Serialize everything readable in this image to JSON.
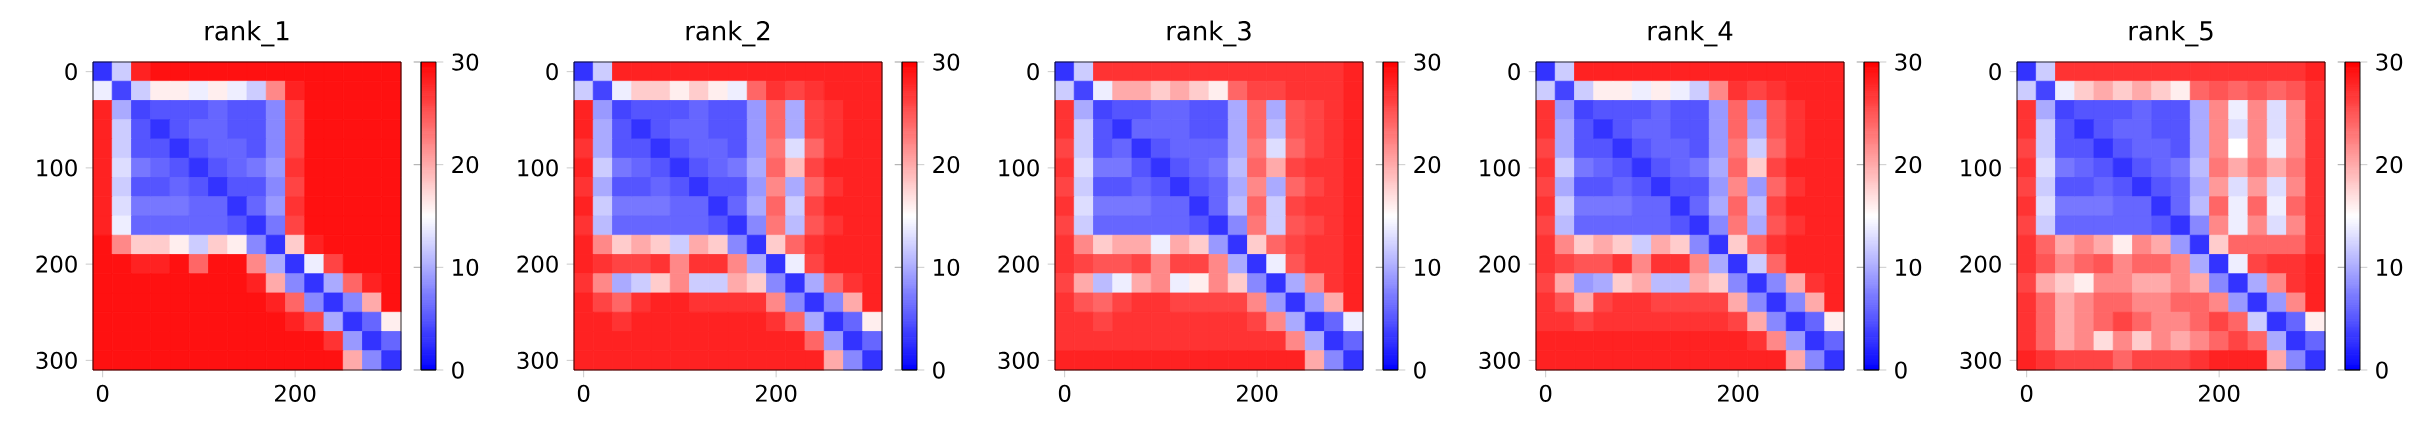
{
  "chart_data": [
    {
      "type": "heatmap",
      "title": "rank_1",
      "categories": [
        "0",
        null,
        null,
        null,
        null,
        null,
        null,
        null,
        null,
        null,
        "200",
        null,
        null,
        null,
        null,
        null
      ],
      "y_categories": [
        "0",
        null,
        null,
        null,
        null,
        "100",
        null,
        null,
        null,
        null,
        "200",
        null,
        null,
        null,
        null,
        "300"
      ],
      "clim": [
        0,
        30
      ],
      "cticks": [
        0,
        10,
        20,
        30
      ],
      "cells": [
        [
          3,
          12,
          28,
          29,
          29,
          29,
          29,
          29,
          29,
          29,
          29,
          29,
          29,
          29,
          29,
          29
        ],
        [
          14,
          4,
          12,
          16,
          16,
          14,
          16,
          14,
          12,
          22,
          28,
          29,
          29,
          29,
          29,
          29
        ],
        [
          28,
          10,
          4,
          5,
          5,
          5,
          6,
          5,
          5,
          8,
          26,
          29,
          29,
          29,
          29,
          29
        ],
        [
          28,
          12,
          5,
          3,
          5,
          6,
          6,
          5,
          5,
          8,
          26,
          29,
          29,
          29,
          29,
          29
        ],
        [
          28,
          12,
          5,
          5,
          3,
          5,
          6,
          6,
          5,
          8,
          26,
          29,
          29,
          29,
          29,
          29
        ],
        [
          28,
          13,
          7,
          6,
          5,
          3,
          5,
          6,
          7,
          9,
          27,
          29,
          29,
          29,
          29,
          29
        ],
        [
          28,
          12,
          5,
          5,
          6,
          5,
          3,
          5,
          5,
          8,
          26,
          29,
          29,
          29,
          29,
          29
        ],
        [
          28,
          13,
          7,
          7,
          7,
          6,
          6,
          3,
          6,
          9,
          27,
          29,
          29,
          29,
          29,
          29
        ],
        [
          28,
          14,
          6,
          6,
          6,
          6,
          6,
          5,
          3,
          7,
          26,
          29,
          29,
          29,
          29,
          29
        ],
        [
          29,
          22,
          18,
          18,
          16,
          12,
          18,
          16,
          8,
          3,
          18,
          28,
          29,
          29,
          29,
          29
        ],
        [
          29,
          29,
          28,
          28,
          29,
          24,
          29,
          29,
          22,
          10,
          3,
          14,
          26,
          29,
          29,
          29
        ],
        [
          29,
          29,
          29,
          29,
          29,
          29,
          29,
          29,
          28,
          20,
          8,
          3,
          10,
          24,
          28,
          29
        ],
        [
          29,
          29,
          29,
          29,
          29,
          29,
          29,
          29,
          29,
          28,
          24,
          8,
          3,
          8,
          20,
          29
        ],
        [
          29,
          29,
          29,
          29,
          29,
          29,
          29,
          29,
          29,
          29,
          28,
          26,
          10,
          3,
          6,
          16
        ],
        [
          29,
          29,
          29,
          29,
          29,
          29,
          29,
          29,
          29,
          29,
          29,
          29,
          27,
          9,
          3,
          6
        ],
        [
          29,
          29,
          29,
          29,
          29,
          29,
          29,
          29,
          29,
          29,
          29,
          29,
          29,
          20,
          8,
          3
        ]
      ]
    },
    {
      "type": "heatmap",
      "title": "rank_2",
      "categories": [
        "0",
        null,
        null,
        null,
        null,
        null,
        null,
        null,
        null,
        null,
        "200",
        null,
        null,
        null,
        null,
        null
      ],
      "y_categories": [
        "0",
        null,
        null,
        null,
        null,
        "100",
        null,
        null,
        null,
        null,
        "200",
        null,
        null,
        null,
        null,
        "300"
      ],
      "clim": [
        0,
        30
      ],
      "cticks": [
        0,
        10,
        20,
        30
      ],
      "cells": [
        [
          3,
          12,
          28,
          28,
          28,
          28,
          28,
          28,
          28,
          28,
          28,
          28,
          28,
          28,
          28,
          28
        ],
        [
          12,
          4,
          14,
          18,
          18,
          16,
          18,
          16,
          14,
          24,
          27,
          26,
          27,
          28,
          28,
          28
        ],
        [
          28,
          9,
          4,
          5,
          5,
          5,
          6,
          5,
          5,
          9,
          24,
          10,
          26,
          27,
          28,
          28
        ],
        [
          28,
          10,
          5,
          3,
          5,
          6,
          6,
          5,
          5,
          9,
          24,
          10,
          26,
          27,
          28,
          28
        ],
        [
          27,
          10,
          5,
          5,
          3,
          5,
          6,
          6,
          5,
          9,
          23,
          13,
          24,
          27,
          28,
          28
        ],
        [
          28,
          12,
          7,
          6,
          5,
          3,
          5,
          6,
          7,
          10,
          24,
          19,
          26,
          28,
          28,
          28
        ],
        [
          27,
          10,
          5,
          5,
          6,
          5,
          3,
          5,
          5,
          9,
          22,
          10,
          24,
          27,
          28,
          28
        ],
        [
          28,
          12,
          7,
          7,
          7,
          6,
          6,
          3,
          6,
          10,
          24,
          12,
          26,
          28,
          28,
          28
        ],
        [
          27,
          11,
          6,
          6,
          6,
          6,
          6,
          5,
          3,
          8,
          23,
          11,
          25,
          27,
          28,
          28
        ],
        [
          28,
          22,
          18,
          20,
          18,
          12,
          20,
          18,
          8,
          3,
          18,
          24,
          27,
          28,
          28,
          28
        ],
        [
          28,
          27,
          26,
          26,
          27,
          22,
          27,
          27,
          22,
          10,
          3,
          14,
          26,
          28,
          28,
          28
        ],
        [
          27,
          22,
          10,
          12,
          18,
          22,
          12,
          12,
          20,
          18,
          8,
          3,
          10,
          24,
          27,
          28
        ],
        [
          28,
          26,
          24,
          27,
          28,
          28,
          27,
          27,
          27,
          27,
          22,
          8,
          3,
          8,
          20,
          28
        ],
        [
          28,
          28,
          27,
          28,
          28,
          28,
          28,
          28,
          28,
          28,
          27,
          24,
          10,
          3,
          6,
          16
        ],
        [
          28,
          28,
          28,
          28,
          28,
          28,
          28,
          28,
          28,
          28,
          28,
          28,
          24,
          9,
          3,
          6
        ],
        [
          28,
          28,
          28,
          28,
          28,
          28,
          28,
          28,
          28,
          28,
          28,
          28,
          28,
          20,
          8,
          3
        ]
      ]
    },
    {
      "type": "heatmap",
      "title": "rank_3",
      "categories": [
        "0",
        null,
        null,
        null,
        null,
        null,
        null,
        null,
        null,
        null,
        "200",
        null,
        null,
        null,
        null,
        null
      ],
      "y_categories": [
        "0",
        null,
        null,
        null,
        null,
        "100",
        null,
        null,
        null,
        null,
        "200",
        null,
        null,
        null,
        null,
        "300"
      ],
      "clim": [
        0,
        30
      ],
      "cticks": [
        0,
        10,
        20,
        30
      ],
      "cells": [
        [
          3,
          12,
          27,
          27,
          27,
          27,
          27,
          27,
          27,
          27,
          27,
          27,
          27,
          27,
          27,
          28
        ],
        [
          12,
          4,
          14,
          20,
          20,
          18,
          20,
          18,
          16,
          24,
          26,
          26,
          27,
          27,
          27,
          28
        ],
        [
          27,
          10,
          4,
          5,
          5,
          6,
          6,
          5,
          5,
          10,
          24,
          10,
          25,
          26,
          27,
          28
        ],
        [
          27,
          12,
          5,
          3,
          6,
          6,
          6,
          5,
          5,
          10,
          24,
          11,
          25,
          26,
          27,
          28
        ],
        [
          26,
          12,
          5,
          6,
          3,
          5,
          6,
          6,
          6,
          10,
          23,
          13,
          24,
          26,
          27,
          28
        ],
        [
          27,
          13,
          7,
          7,
          5,
          3,
          5,
          6,
          7,
          11,
          24,
          20,
          26,
          27,
          27,
          28
        ],
        [
          26,
          12,
          5,
          5,
          6,
          5,
          3,
          5,
          6,
          10,
          22,
          10,
          24,
          26,
          27,
          28
        ],
        [
          27,
          13,
          7,
          7,
          7,
          6,
          6,
          3,
          6,
          11,
          24,
          12,
          26,
          27,
          27,
          28
        ],
        [
          26,
          12,
          6,
          6,
          6,
          6,
          6,
          5,
          3,
          8,
          23,
          12,
          25,
          26,
          27,
          28
        ],
        [
          27,
          22,
          18,
          20,
          20,
          14,
          20,
          18,
          9,
          3,
          18,
          24,
          26,
          27,
          27,
          28
        ],
        [
          27,
          26,
          25,
          25,
          26,
          22,
          26,
          26,
          22,
          10,
          3,
          14,
          25,
          27,
          27,
          28
        ],
        [
          26,
          20,
          11,
          14,
          20,
          22,
          14,
          16,
          22,
          18,
          8,
          3,
          10,
          22,
          27,
          28
        ],
        [
          27,
          25,
          24,
          26,
          27,
          27,
          26,
          26,
          26,
          26,
          22,
          9,
          3,
          9,
          20,
          28
        ],
        [
          27,
          27,
          26,
          27,
          27,
          27,
          27,
          27,
          27,
          27,
          26,
          22,
          10,
          3,
          6,
          14
        ],
        [
          27,
          27,
          27,
          27,
          27,
          27,
          27,
          27,
          27,
          27,
          27,
          27,
          22,
          10,
          3,
          6
        ],
        [
          28,
          28,
          28,
          28,
          28,
          28,
          28,
          28,
          28,
          28,
          28,
          28,
          28,
          20,
          8,
          3
        ]
      ]
    },
    {
      "type": "heatmap",
      "title": "rank_4",
      "categories": [
        "0",
        null,
        null,
        null,
        null,
        null,
        null,
        null,
        null,
        null,
        "200",
        null,
        null,
        null,
        null,
        null
      ],
      "y_categories": [
        "0",
        null,
        null,
        null,
        null,
        "100",
        null,
        null,
        null,
        null,
        "200",
        null,
        null,
        null,
        null,
        "300"
      ],
      "clim": [
        0,
        30
      ],
      "cticks": [
        0,
        10,
        20,
        30
      ],
      "cells": [
        [
          3,
          12,
          28,
          28,
          28,
          28,
          28,
          28,
          28,
          28,
          28,
          28,
          28,
          28,
          28,
          28
        ],
        [
          12,
          4,
          12,
          16,
          16,
          14,
          16,
          14,
          12,
          22,
          27,
          26,
          27,
          28,
          28,
          28
        ],
        [
          27,
          9,
          4,
          5,
          5,
          5,
          6,
          5,
          5,
          9,
          24,
          9,
          25,
          27,
          28,
          28
        ],
        [
          27,
          10,
          5,
          3,
          5,
          6,
          6,
          5,
          5,
          9,
          24,
          10,
          25,
          27,
          28,
          28
        ],
        [
          26,
          10,
          5,
          5,
          3,
          5,
          6,
          6,
          5,
          9,
          23,
          12,
          24,
          27,
          28,
          28
        ],
        [
          27,
          12,
          7,
          6,
          5,
          3,
          5,
          6,
          7,
          10,
          24,
          18,
          26,
          28,
          28,
          28
        ],
        [
          26,
          10,
          5,
          5,
          6,
          5,
          3,
          5,
          5,
          9,
          22,
          9,
          24,
          27,
          28,
          28
        ],
        [
          27,
          12,
          7,
          7,
          7,
          6,
          6,
          3,
          6,
          10,
          24,
          11,
          26,
          28,
          28,
          28
        ],
        [
          26,
          11,
          6,
          6,
          6,
          6,
          6,
          5,
          3,
          8,
          23,
          10,
          25,
          27,
          28,
          28
        ],
        [
          27,
          22,
          18,
          20,
          18,
          12,
          20,
          18,
          8,
          3,
          18,
          24,
          27,
          28,
          28,
          28
        ],
        [
          27,
          26,
          25,
          25,
          27,
          22,
          27,
          27,
          22,
          10,
          3,
          12,
          24,
          28,
          28,
          28
        ],
        [
          26,
          20,
          9,
          10,
          18,
          20,
          11,
          11,
          20,
          18,
          8,
          3,
          8,
          20,
          27,
          28
        ],
        [
          27,
          25,
          20,
          26,
          27,
          27,
          26,
          26,
          26,
          26,
          20,
          8,
          3,
          8,
          20,
          28
        ],
        [
          27,
          27,
          26,
          27,
          27,
          27,
          27,
          27,
          27,
          27,
          26,
          20,
          8,
          3,
          6,
          16
        ],
        [
          28,
          28,
          28,
          28,
          28,
          28,
          28,
          28,
          28,
          28,
          28,
          27,
          22,
          9,
          3,
          6
        ],
        [
          28,
          28,
          28,
          28,
          28,
          28,
          28,
          28,
          28,
          28,
          28,
          28,
          28,
          20,
          8,
          3
        ]
      ]
    },
    {
      "type": "heatmap",
      "title": "rank_5",
      "categories": [
        "0",
        null,
        null,
        null,
        null,
        null,
        null,
        null,
        null,
        null,
        "200",
        null,
        null,
        null,
        null,
        null
      ],
      "y_categories": [
        "0",
        null,
        null,
        null,
        null,
        "100",
        null,
        null,
        null,
        null,
        "200",
        null,
        null,
        null,
        null,
        "300"
      ],
      "clim": [
        0,
        30
      ],
      "cticks": [
        0,
        10,
        20,
        30
      ],
      "cells": [
        [
          3,
          12,
          27,
          27,
          27,
          27,
          27,
          27,
          27,
          27,
          27,
          27,
          27,
          27,
          27,
          28
        ],
        [
          12,
          4,
          14,
          18,
          20,
          18,
          20,
          18,
          16,
          24,
          25,
          24,
          25,
          24,
          25,
          27
        ],
        [
          27,
          10,
          4,
          5,
          5,
          5,
          6,
          5,
          5,
          10,
          22,
          14,
          22,
          13,
          22,
          27
        ],
        [
          27,
          12,
          5,
          3,
          5,
          6,
          6,
          5,
          5,
          10,
          22,
          13,
          22,
          13,
          22,
          27
        ],
        [
          26,
          12,
          5,
          5,
          3,
          5,
          6,
          6,
          5,
          10,
          22,
          15,
          22,
          14,
          22,
          27
        ],
        [
          27,
          13,
          7,
          6,
          5,
          3,
          5,
          6,
          7,
          11,
          23,
          20,
          23,
          20,
          23,
          27
        ],
        [
          26,
          12,
          5,
          5,
          6,
          5,
          3,
          5,
          6,
          10,
          21,
          13,
          21,
          13,
          22,
          27
        ],
        [
          27,
          13,
          7,
          7,
          7,
          6,
          6,
          3,
          6,
          11,
          24,
          14,
          24,
          14,
          24,
          27
        ],
        [
          26,
          12,
          6,
          6,
          6,
          6,
          6,
          5,
          3,
          8,
          22,
          14,
          22,
          13,
          22,
          27
        ],
        [
          27,
          24,
          20,
          22,
          20,
          16,
          22,
          20,
          9,
          3,
          18,
          24,
          24,
          24,
          24,
          27
        ],
        [
          27,
          25,
          22,
          24,
          25,
          22,
          24,
          24,
          22,
          10,
          3,
          14,
          26,
          27,
          27,
          28
        ],
        [
          26,
          20,
          18,
          16,
          22,
          22,
          20,
          20,
          22,
          20,
          8,
          3,
          10,
          22,
          27,
          28
        ],
        [
          27,
          24,
          20,
          22,
          24,
          24,
          22,
          22,
          24,
          24,
          22,
          9,
          3,
          9,
          22,
          28
        ],
        [
          27,
          24,
          20,
          22,
          24,
          26,
          24,
          22,
          22,
          24,
          26,
          24,
          12,
          3,
          6,
          16
        ],
        [
          27,
          24,
          20,
          22,
          17,
          22,
          18,
          22,
          20,
          22,
          24,
          26,
          24,
          10,
          3,
          6
        ],
        [
          28,
          27,
          26,
          26,
          26,
          24,
          26,
          26,
          26,
          27,
          28,
          28,
          28,
          20,
          8,
          3
        ]
      ]
    }
  ]
}
